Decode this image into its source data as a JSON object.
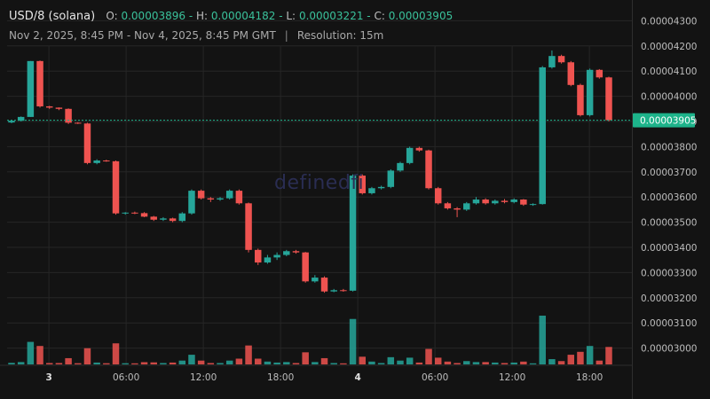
{
  "header": {
    "symbol": "USD/8 (solana)",
    "open_label": "O:",
    "open": "0.00003896",
    "high_label": "H:",
    "high": "0.00004182",
    "low_label": "L:",
    "low": "0.00003221",
    "close_label": "C:",
    "close": "0.00003905",
    "range": "Nov 2, 2025, 8:45 PM - Nov 4, 2025, 8:45 PM GMT",
    "separator": "|",
    "resolution": "Resolution: 15m"
  },
  "watermark": "definedfi",
  "colors": {
    "up": "#26a69a",
    "down": "#ef5350",
    "grid": "#262626",
    "last": "#1db38a"
  },
  "chart_data": {
    "type": "candlestick",
    "y_ticks": [
      "0.00004300",
      "0.00004200",
      "0.00004100",
      "0.00004000",
      "0.00003900",
      "0.00003800",
      "0.00003700",
      "0.00003600",
      "0.00003500",
      "0.00003400",
      "0.00003300",
      "0.00003200",
      "0.00003100",
      "0.00003000"
    ],
    "x_ticks": [
      {
        "label": "3",
        "hour": 3.25,
        "bold": true
      },
      {
        "label": "06:00",
        "hour": 9.25,
        "bold": false
      },
      {
        "label": "12:00",
        "hour": 15.25,
        "bold": false
      },
      {
        "label": "18:00",
        "hour": 21.25,
        "bold": false
      },
      {
        "label": "4",
        "hour": 27.25,
        "bold": true
      },
      {
        "label": "06:00",
        "hour": 33.25,
        "bold": false
      },
      {
        "label": "12:00",
        "hour": 39.25,
        "bold": false
      },
      {
        "label": "18:00",
        "hour": 45.25,
        "bold": false
      }
    ],
    "last_price": "0.00003905",
    "ohlc": [
      {
        "o": 3.896,
        "h": 3.905,
        "l": 3.893,
        "c": 3.903
      },
      {
        "o": 3.903,
        "h": 3.92,
        "l": 3.9,
        "c": 3.918
      },
      {
        "o": 3.918,
        "h": 4.14,
        "l": 3.918,
        "c": 4.14
      },
      {
        "o": 4.14,
        "h": 4.142,
        "l": 3.955,
        "c": 3.96
      },
      {
        "o": 3.96,
        "h": 3.962,
        "l": 3.95,
        "c": 3.955
      },
      {
        "o": 3.955,
        "h": 3.956,
        "l": 3.945,
        "c": 3.95
      },
      {
        "o": 3.95,
        "h": 3.952,
        "l": 3.89,
        "c": 3.895
      },
      {
        "o": 3.895,
        "h": 3.897,
        "l": 3.89,
        "c": 3.892
      },
      {
        "o": 3.892,
        "h": 3.895,
        "l": 3.73,
        "c": 3.735
      },
      {
        "o": 3.735,
        "h": 3.75,
        "l": 3.73,
        "c": 3.745
      },
      {
        "o": 3.745,
        "h": 3.748,
        "l": 3.74,
        "c": 3.742
      },
      {
        "o": 3.742,
        "h": 3.745,
        "l": 3.53,
        "c": 3.535
      },
      {
        "o": 3.535,
        "h": 3.54,
        "l": 3.53,
        "c": 3.538
      },
      {
        "o": 3.538,
        "h": 3.542,
        "l": 3.532,
        "c": 3.536
      },
      {
        "o": 3.536,
        "h": 3.54,
        "l": 3.52,
        "c": 3.522
      },
      {
        "o": 3.522,
        "h": 3.525,
        "l": 3.505,
        "c": 3.51
      },
      {
        "o": 3.51,
        "h": 3.52,
        "l": 3.505,
        "c": 3.515
      },
      {
        "o": 3.515,
        "h": 3.518,
        "l": 3.5,
        "c": 3.505
      },
      {
        "o": 3.505,
        "h": 3.54,
        "l": 3.5,
        "c": 3.535
      },
      {
        "o": 3.535,
        "h": 3.63,
        "l": 3.53,
        "c": 3.625
      },
      {
        "o": 3.625,
        "h": 3.63,
        "l": 3.59,
        "c": 3.595
      },
      {
        "o": 3.595,
        "h": 3.6,
        "l": 3.58,
        "c": 3.59
      },
      {
        "o": 3.59,
        "h": 3.6,
        "l": 3.585,
        "c": 3.595
      },
      {
        "o": 3.595,
        "h": 3.63,
        "l": 3.59,
        "c": 3.625
      },
      {
        "o": 3.625,
        "h": 3.63,
        "l": 3.57,
        "c": 3.575
      },
      {
        "o": 3.575,
        "h": 3.578,
        "l": 3.38,
        "c": 3.39
      },
      {
        "o": 3.39,
        "h": 3.395,
        "l": 3.33,
        "c": 3.34
      },
      {
        "o": 3.34,
        "h": 3.37,
        "l": 3.335,
        "c": 3.36
      },
      {
        "o": 3.36,
        "h": 3.38,
        "l": 3.35,
        "c": 3.37
      },
      {
        "o": 3.37,
        "h": 3.39,
        "l": 3.365,
        "c": 3.385
      },
      {
        "o": 3.385,
        "h": 3.39,
        "l": 3.375,
        "c": 3.38
      },
      {
        "o": 3.38,
        "h": 3.382,
        "l": 3.26,
        "c": 3.265
      },
      {
        "o": 3.265,
        "h": 3.29,
        "l": 3.26,
        "c": 3.28
      },
      {
        "o": 3.28,
        "h": 3.285,
        "l": 3.22,
        "c": 3.225
      },
      {
        "o": 3.225,
        "h": 3.235,
        "l": 3.222,
        "c": 3.23
      },
      {
        "o": 3.23,
        "h": 3.235,
        "l": 3.224,
        "c": 3.228
      },
      {
        "o": 3.228,
        "h": 3.69,
        "l": 3.225,
        "c": 3.685
      },
      {
        "o": 3.685,
        "h": 3.69,
        "l": 3.61,
        "c": 3.615
      },
      {
        "o": 3.615,
        "h": 3.64,
        "l": 3.61,
        "c": 3.635
      },
      {
        "o": 3.635,
        "h": 3.645,
        "l": 3.63,
        "c": 3.64
      },
      {
        "o": 3.64,
        "h": 3.71,
        "l": 3.635,
        "c": 3.705
      },
      {
        "o": 3.705,
        "h": 3.74,
        "l": 3.7,
        "c": 3.735
      },
      {
        "o": 3.735,
        "h": 3.8,
        "l": 3.73,
        "c": 3.795
      },
      {
        "o": 3.795,
        "h": 3.8,
        "l": 3.78,
        "c": 3.785
      },
      {
        "o": 3.785,
        "h": 3.788,
        "l": 3.63,
        "c": 3.635
      },
      {
        "o": 3.635,
        "h": 3.64,
        "l": 3.57,
        "c": 3.575
      },
      {
        "o": 3.575,
        "h": 3.58,
        "l": 3.55,
        "c": 3.555
      },
      {
        "o": 3.555,
        "h": 3.56,
        "l": 3.52,
        "c": 3.55
      },
      {
        "o": 3.55,
        "h": 3.58,
        "l": 3.545,
        "c": 3.575
      },
      {
        "o": 3.575,
        "h": 3.6,
        "l": 3.57,
        "c": 3.59
      },
      {
        "o": 3.59,
        "h": 3.595,
        "l": 3.57,
        "c": 3.575
      },
      {
        "o": 3.575,
        "h": 3.59,
        "l": 3.57,
        "c": 3.585
      },
      {
        "o": 3.585,
        "h": 3.592,
        "l": 3.575,
        "c": 3.58
      },
      {
        "o": 3.58,
        "h": 3.595,
        "l": 3.575,
        "c": 3.59
      },
      {
        "o": 3.59,
        "h": 3.592,
        "l": 3.565,
        "c": 3.57
      },
      {
        "o": 3.57,
        "h": 3.575,
        "l": 3.565,
        "c": 3.572
      },
      {
        "o": 3.572,
        "h": 4.12,
        "l": 3.57,
        "c": 4.115
      },
      {
        "o": 4.115,
        "h": 4.182,
        "l": 4.11,
        "c": 4.16
      },
      {
        "o": 4.16,
        "h": 4.165,
        "l": 4.13,
        "c": 4.135
      },
      {
        "o": 4.135,
        "h": 4.14,
        "l": 4.04,
        "c": 4.045
      },
      {
        "o": 4.045,
        "h": 4.05,
        "l": 3.92,
        "c": 3.925
      },
      {
        "o": 3.925,
        "h": 4.11,
        "l": 3.92,
        "c": 4.105
      },
      {
        "o": 4.105,
        "h": 4.108,
        "l": 4.07,
        "c": 4.075
      },
      {
        "o": 4.075,
        "h": 4.078,
        "l": 3.9,
        "c": 3.905
      }
    ],
    "volume_hint": "relative volume bars at bottom"
  }
}
